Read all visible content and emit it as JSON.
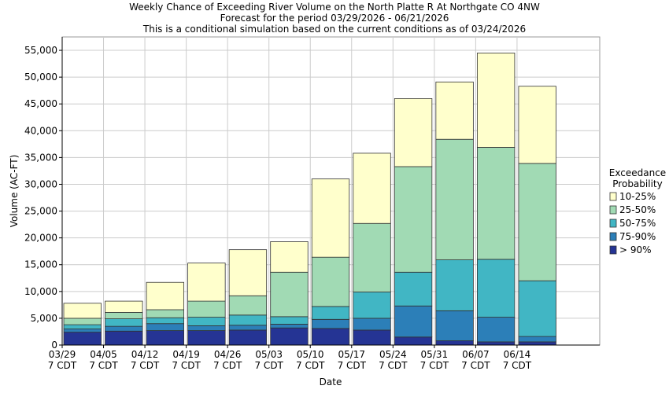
{
  "chart_data": {
    "type": "stacked_bar",
    "title": "Weekly Chance of Exceeding River Volume on the North Platte R At Northgate CO 4NW",
    "subtitle": "Forecast for the period 03/29/2026 - 06/21/2026",
    "note": "This is a conditional simulation based on the current conditions as of 03/24/2026",
    "x_label": "Date",
    "y_label": "Volume (AC-FT)",
    "categories": [
      "03/29",
      "04/05",
      "04/12",
      "04/19",
      "04/26",
      "05/03",
      "05/10",
      "05/17",
      "05/24",
      "05/31",
      "06/07",
      "06/14",
      null
    ],
    "x_tick_sublabel": "7 CDT",
    "legend_title": [
      "Exceedance",
      "Probability"
    ],
    "series": [
      {
        "name": "> 90%",
        "color": "#253494",
        "values": [
          2400,
          2600,
          2700,
          2700,
          2800,
          3200,
          3100,
          2800,
          1500,
          800,
          600,
          600,
          null
        ]
      },
      {
        "name": "75-90%",
        "color": "#2c7fb8",
        "values": [
          600,
          900,
          1300,
          900,
          900,
          700,
          1700,
          2200,
          5800,
          5600,
          4600,
          1000,
          null
        ]
      },
      {
        "name": "50-75%",
        "color": "#41b6c4",
        "values": [
          800,
          1400,
          1100,
          1600,
          1900,
          1400,
          2400,
          4900,
          6300,
          9500,
          10800,
          10400,
          null
        ]
      },
      {
        "name": "25-50%",
        "color": "#a1dab4",
        "values": [
          1200,
          1200,
          1500,
          3000,
          3600,
          8300,
          9200,
          12800,
          19700,
          22500,
          20900,
          21900,
          null
        ]
      },
      {
        "name": "10-25%",
        "color": "#ffffcc",
        "values": [
          2800,
          2100,
          5100,
          7100,
          8600,
          5700,
          14600,
          13100,
          12700,
          10700,
          17600,
          14400,
          null
        ]
      }
    ],
    "ylim": [
      0,
      57500
    ],
    "yticks": [
      0,
      {
        "value": 5000,
        "label": "5,000"
      },
      {
        "value": 10000,
        "label": "10,000"
      },
      {
        "value": 15000,
        "label": "15,000"
      },
      {
        "value": 20000,
        "label": "20,000"
      },
      {
        "value": 25000,
        "label": "25,000"
      },
      {
        "value": 30000,
        "label": "30,000"
      },
      {
        "value": 35000,
        "label": "35,000"
      },
      {
        "value": 40000,
        "label": "40,000"
      },
      {
        "value": 45000,
        "label": "45,000"
      },
      {
        "value": 50000,
        "label": "50,000"
      },
      {
        "value": 55000,
        "label": "55,000"
      }
    ],
    "grid": true
  }
}
